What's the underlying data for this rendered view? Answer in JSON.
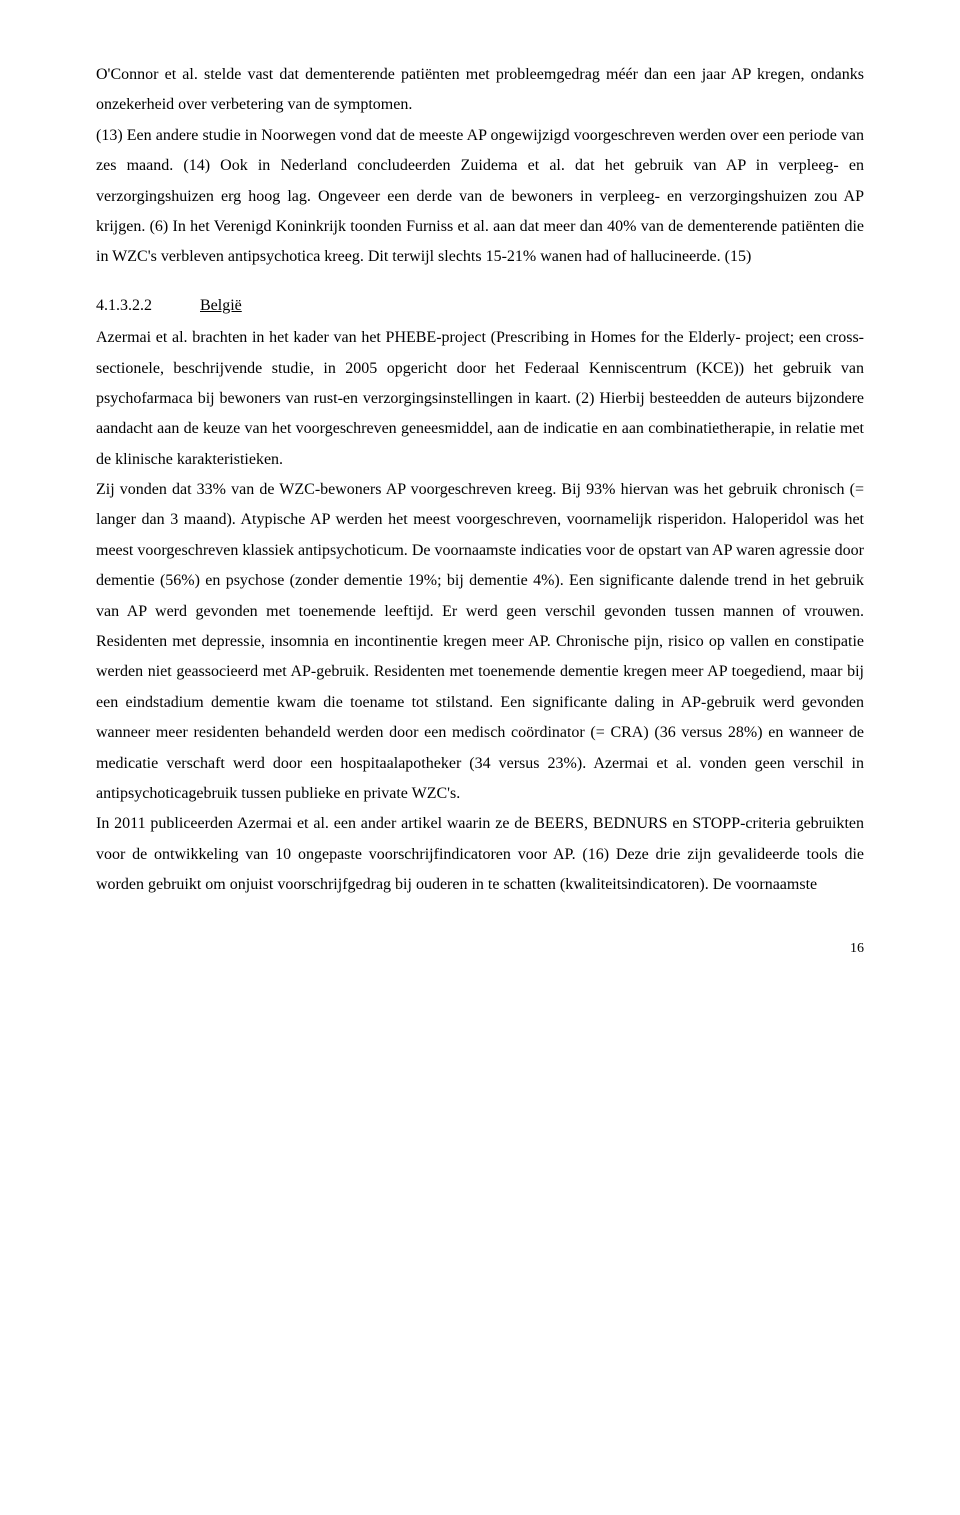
{
  "para1": "O'Connor et al. stelde vast dat dementerende patiënten met probleemgedrag méér dan een jaar AP kregen, ondanks onzekerheid over verbetering van de symptomen.",
  "para2": "(13) Een andere studie in Noorwegen vond dat de meeste AP ongewijzigd voorgeschreven werden over een periode van zes maand. (14) Ook in Nederland concludeerden Zuidema et al. dat het gebruik van AP in verpleeg- en verzorgingshuizen erg hoog lag. Ongeveer een derde van de bewoners in verpleeg- en verzorgingshuizen zou AP krijgen. (6) In het Verenigd Koninkrijk toonden Furniss et al. aan dat meer dan 40% van de dementerende patiënten die in WZC's verbleven antipsychotica kreeg. Dit terwijl slechts 15-21% wanen had of hallucineerde. (15)",
  "section": {
    "number": "4.1.3.2.2",
    "label": "België"
  },
  "para3": "Azermai et al. brachten in het kader van het PHEBE-project (Prescribing in Homes for the Elderly- project; een cross-sectionele, beschrijvende studie, in 2005 opgericht door het Federaal Kenniscentrum (KCE)) het gebruik van psychofarmaca bij bewoners van rust-en verzorgingsinstellingen in kaart. (2) Hierbij besteedden de auteurs bijzondere aandacht aan de keuze van het voorgeschreven geneesmiddel, aan de indicatie en aan combinatietherapie, in relatie met de klinische karakteristieken.",
  "para4": "Zij vonden dat 33% van de WZC-bewoners AP voorgeschreven kreeg. Bij 93% hiervan was het gebruik chronisch (= langer dan 3 maand). Atypische AP werden het meest voorgeschreven, voornamelijk risperidon. Haloperidol was het meest voorgeschreven klassiek antipsychoticum. De voornaamste indicaties voor de opstart van AP waren agressie door dementie (56%) en psychose (zonder dementie 19%; bij dementie 4%). Een significante dalende trend in het gebruik van AP werd gevonden met toenemende leeftijd. Er werd geen verschil gevonden tussen mannen of vrouwen. Residenten met depressie, insomnia en incontinentie kregen meer AP. Chronische pijn, risico op vallen en constipatie werden niet geassocieerd met AP-gebruik. Residenten met toenemende dementie kregen meer AP toegediend, maar bij een eindstadium dementie kwam die toename tot stilstand. Een significante daling in AP-gebruik werd gevonden wanneer meer residenten behandeld werden door een medisch coördinator (= CRA) (36 versus 28%) en wanneer de medicatie verschaft werd door een hospitaalapotheker (34 versus 23%). Azermai et al. vonden geen verschil in antipsychoticagebruik tussen publieke en private WZC's.",
  "para5": "In 2011 publiceerden Azermai et al. een ander artikel waarin ze de BEERS, BEDNURS en STOPP-criteria gebruikten voor de ontwikkeling van 10 ongepaste voorschrijfindicatoren voor AP. (16) Deze drie zijn gevalideerde tools die worden gebruikt om onjuist voorschrijfgedrag bij ouderen in te schatten (kwaliteitsindicatoren). De voornaamste",
  "page_number": "16"
}
